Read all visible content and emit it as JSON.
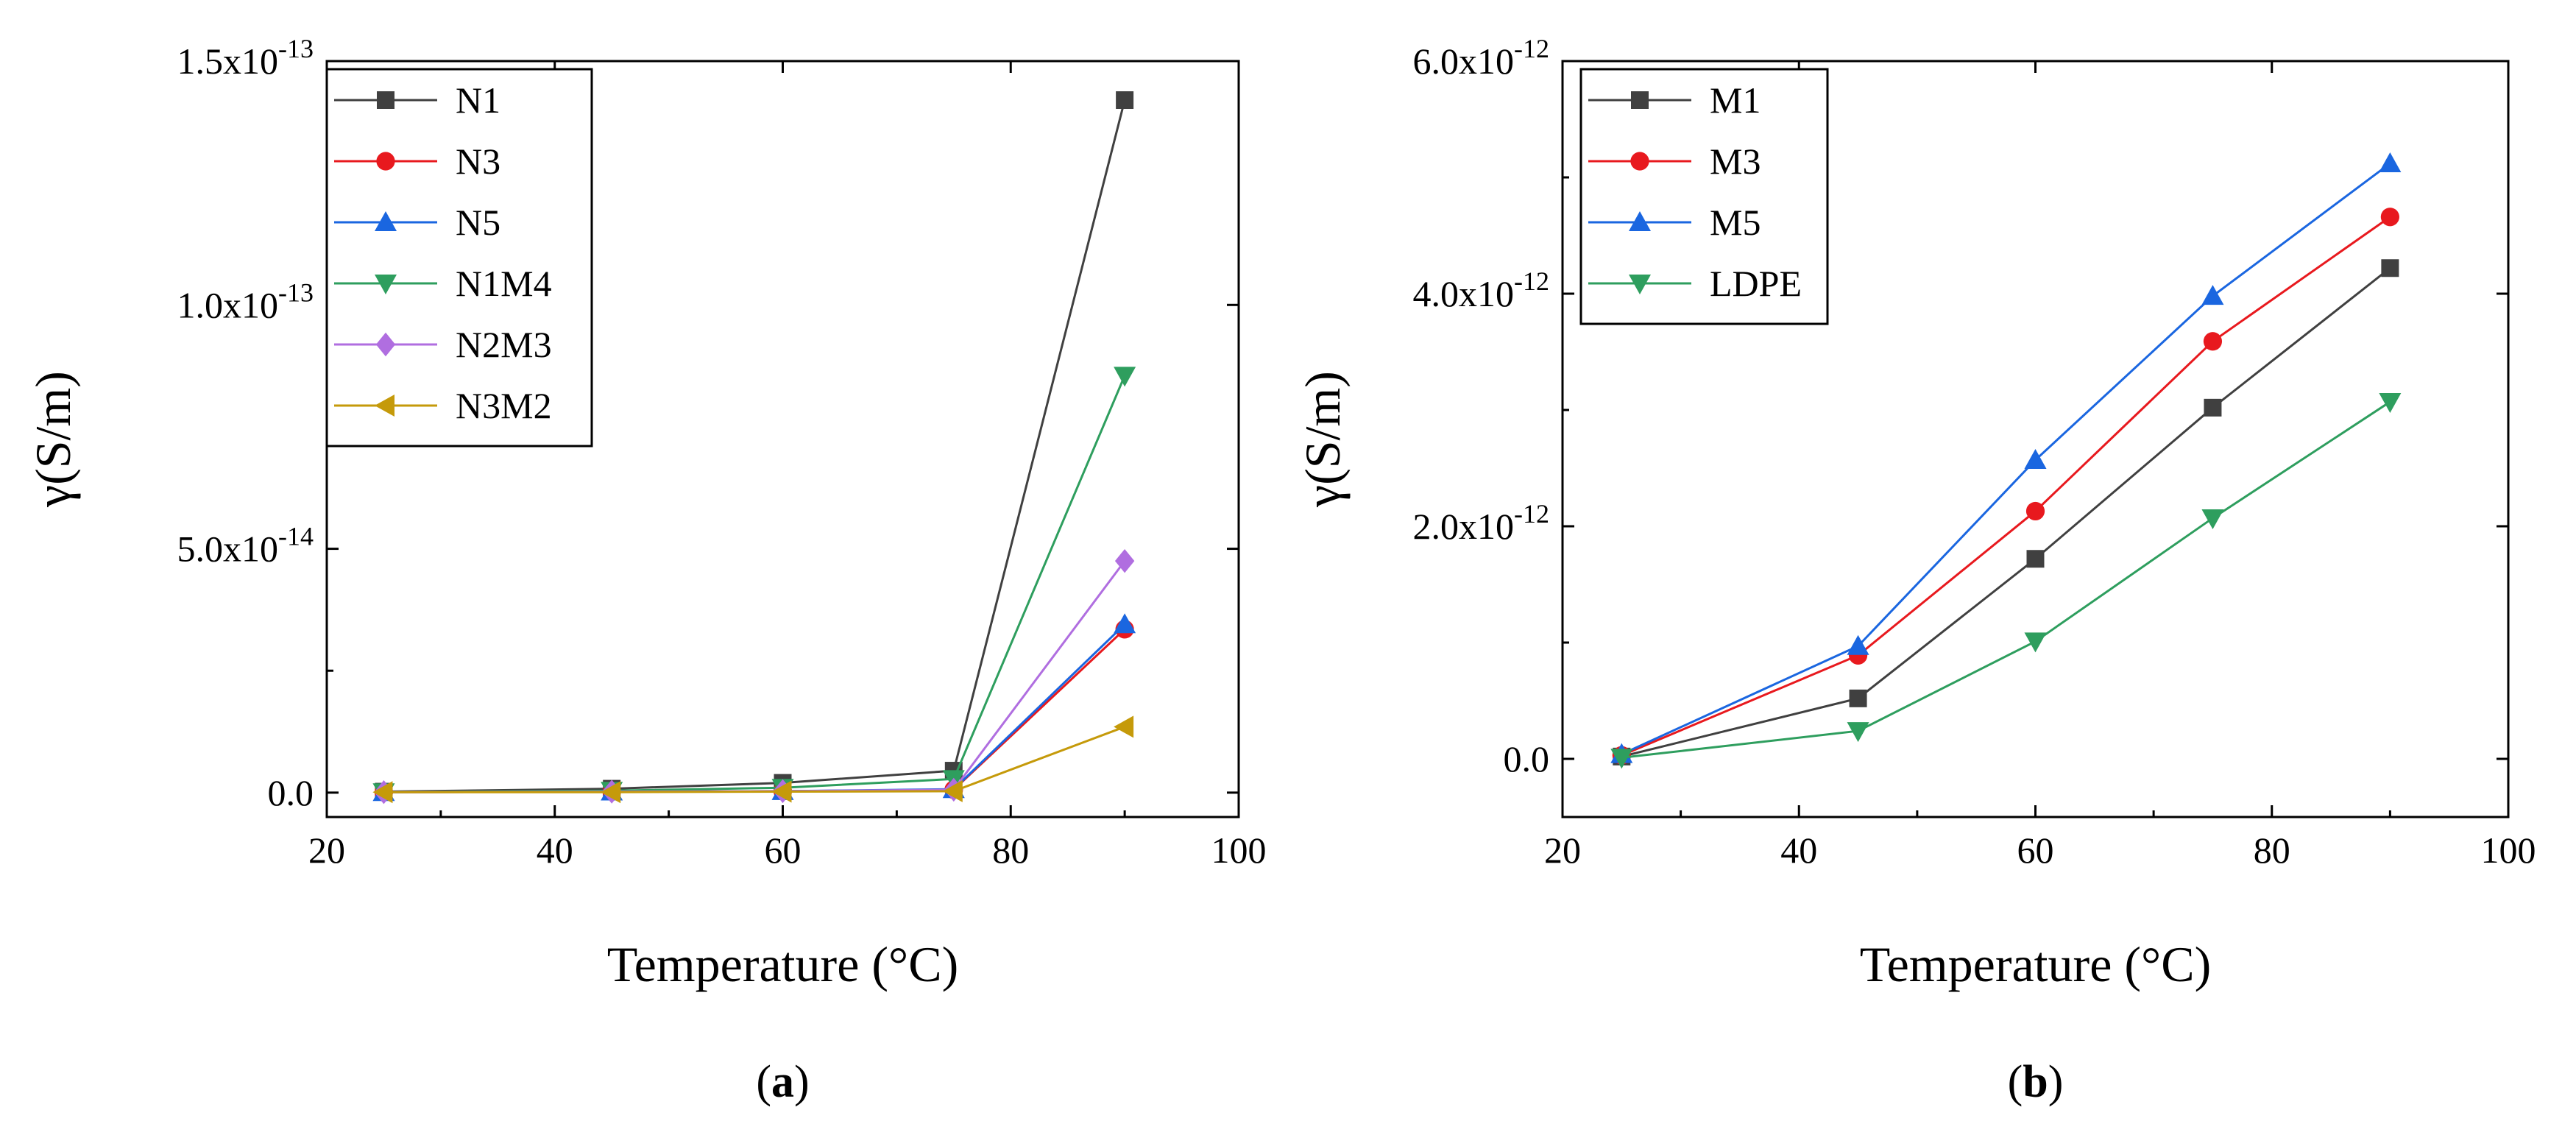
{
  "chart_data": [
    {
      "id": "a",
      "type": "line",
      "caption": {
        "open": "(",
        "letter": "a",
        "close": ")"
      },
      "xlabel": "Temperature (°C)",
      "ylabel": "γ(S/m)",
      "xlim": [
        20,
        100
      ],
      "ylim": [
        -5e-15,
        1.5e-13
      ],
      "xticks": [
        {
          "value": 20,
          "label": "20"
        },
        {
          "value": 40,
          "label": "40"
        },
        {
          "value": 60,
          "label": "60"
        },
        {
          "value": 80,
          "label": "80"
        },
        {
          "value": 100,
          "label": "100"
        }
      ],
      "yticks": [
        {
          "value": 0,
          "base": "0.0",
          "exp": ""
        },
        {
          "value": 5e-14,
          "base": "5.0x10",
          "exp": "-14"
        },
        {
          "value": 1e-13,
          "base": "1.0x10",
          "exp": "-13"
        },
        {
          "value": 1.5e-13,
          "base": "1.5x10",
          "exp": "-13"
        }
      ],
      "x": [
        25,
        45,
        60,
        75,
        90
      ],
      "series": [
        {
          "name": "N1",
          "color": "#404040",
          "marker": "square",
          "values": [
            2e-16,
            8e-16,
            2e-15,
            4.5e-15,
            1.42e-13
          ]
        },
        {
          "name": "N3",
          "color": "#e8191e",
          "marker": "circle",
          "values": [
            1e-16,
            2e-16,
            3e-16,
            6e-16,
            3.35e-14
          ]
        },
        {
          "name": "N5",
          "color": "#1a66e0",
          "marker": "triangle-up",
          "values": [
            1e-16,
            2e-16,
            3e-16,
            7e-16,
            3.45e-14
          ]
        },
        {
          "name": "N1M4",
          "color": "#2e9e5e",
          "marker": "triangle-down",
          "values": [
            1e-16,
            4e-16,
            1e-15,
            2.8e-15,
            8.55e-14
          ]
        },
        {
          "name": "N2M3",
          "color": "#b06ee0",
          "marker": "diamond",
          "values": [
            1e-16,
            2e-16,
            3e-16,
            6e-16,
            4.75e-14
          ]
        },
        {
          "name": "N3M2",
          "color": "#c59a0a",
          "marker": "triangle-left",
          "values": [
            1e-16,
            1e-16,
            2e-16,
            3e-16,
            1.35e-14
          ]
        }
      ]
    },
    {
      "id": "b",
      "type": "line",
      "caption": {
        "open": "(",
        "letter": "b",
        "close": ")"
      },
      "xlabel": "Temperature (°C)",
      "ylabel": "γ(S/m)",
      "xlim": [
        20,
        100
      ],
      "ylim": [
        -5e-13,
        6e-12
      ],
      "xticks": [
        {
          "value": 20,
          "label": "20"
        },
        {
          "value": 40,
          "label": "40"
        },
        {
          "value": 60,
          "label": "60"
        },
        {
          "value": 80,
          "label": "80"
        },
        {
          "value": 100,
          "label": "100"
        }
      ],
      "yticks": [
        {
          "value": 0,
          "base": "0.0",
          "exp": ""
        },
        {
          "value": 2e-12,
          "base": "2.0x10",
          "exp": "-12"
        },
        {
          "value": 4e-12,
          "base": "4.0x10",
          "exp": "-12"
        },
        {
          "value": 6e-12,
          "base": "6.0x10",
          "exp": "-12"
        }
      ],
      "x": [
        25,
        45,
        60,
        75,
        90
      ],
      "series": [
        {
          "name": "M1",
          "color": "#404040",
          "marker": "square",
          "values": [
            2e-14,
            5.2e-13,
            1.72e-12,
            3.02e-12,
            4.22e-12
          ]
        },
        {
          "name": "M3",
          "color": "#e8191e",
          "marker": "circle",
          "values": [
            3e-14,
            8.9e-13,
            2.13e-12,
            3.59e-12,
            4.66e-12
          ]
        },
        {
          "name": "M5",
          "color": "#1a66e0",
          "marker": "triangle-up",
          "values": [
            4e-14,
            9.7e-13,
            2.57e-12,
            3.98e-12,
            5.12e-12
          ]
        },
        {
          "name": "LDPE",
          "color": "#2e9e5e",
          "marker": "triangle-down",
          "values": [
            1e-14,
            2.4e-13,
            1.01e-12,
            2.07e-12,
            3.07e-12
          ]
        }
      ]
    }
  ]
}
